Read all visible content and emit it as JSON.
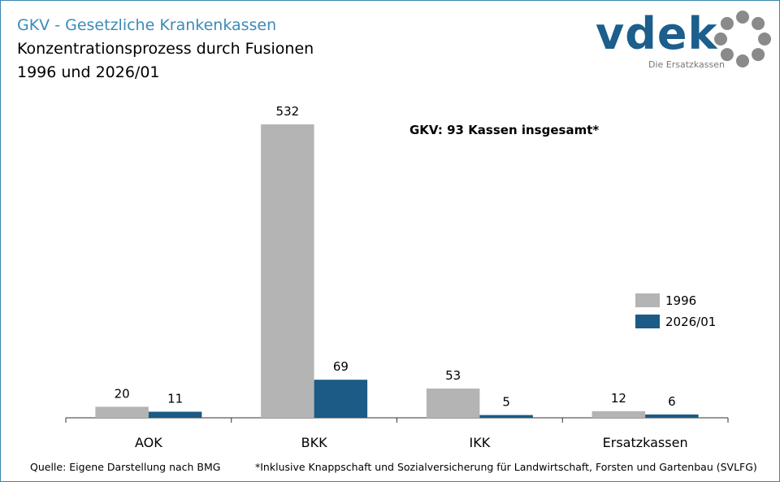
{
  "header": {
    "title": "GKV - Gesetzliche Krankenkassen",
    "subtitle1": "Konzentrationsprozess durch Fusionen",
    "subtitle2": "1996 und 2026/01"
  },
  "logo": {
    "text": "vdek",
    "tagline": "Die Ersatzkassen"
  },
  "footer": {
    "source": "Quelle: Eigene Darstellung nach BMG",
    "footnote": "*Inklusive Knappschaft und Sozialversicherung für Landwirtschaft, Forsten und Gartenbau (SVLFG)"
  },
  "colors": {
    "s1996": "#b4b4b4",
    "s2026": "#1b5b86"
  },
  "chart_data": {
    "type": "bar",
    "title": "Konzentrationsprozess durch Fusionen",
    "annotation": "GKV: 93 Kassen insgesamt*",
    "categories": [
      "AOK",
      "BKK",
      "IKK",
      "Ersatzkassen"
    ],
    "series": [
      {
        "name": "1996",
        "values": [
          20,
          532,
          53,
          12
        ]
      },
      {
        "name": "2026/01",
        "values": [
          11,
          69,
          5,
          6
        ]
      }
    ],
    "ylim": [
      0,
      532
    ],
    "legend": "right",
    "grid": false
  }
}
